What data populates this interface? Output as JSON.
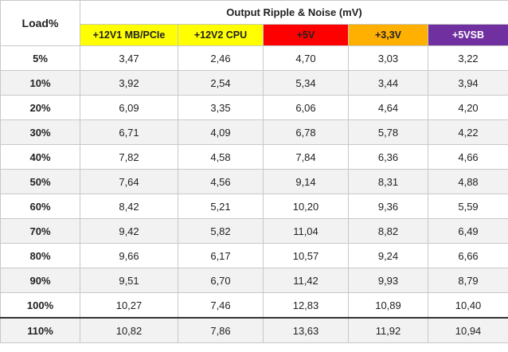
{
  "header": {
    "load": "Load%",
    "group": "Output Ripple & Noise (mV)",
    "columns": [
      "+12V1 MB/PCIe",
      "+12V2 CPU",
      "+5V",
      "+3,3V",
      "+5VSB"
    ]
  },
  "rows": [
    {
      "load": "5%",
      "values": [
        "3,47",
        "2,46",
        "4,70",
        "3,03",
        "3,22"
      ]
    },
    {
      "load": "10%",
      "values": [
        "3,92",
        "2,54",
        "5,34",
        "3,44",
        "3,94"
      ]
    },
    {
      "load": "20%",
      "values": [
        "6,09",
        "3,35",
        "6,06",
        "4,64",
        "4,20"
      ]
    },
    {
      "load": "30%",
      "values": [
        "6,71",
        "4,09",
        "6,78",
        "5,78",
        "4,22"
      ]
    },
    {
      "load": "40%",
      "values": [
        "7,82",
        "4,58",
        "7,84",
        "6,36",
        "4,66"
      ]
    },
    {
      "load": "50%",
      "values": [
        "7,64",
        "4,56",
        "9,14",
        "8,31",
        "4,88"
      ]
    },
    {
      "load": "60%",
      "values": [
        "8,42",
        "5,21",
        "10,20",
        "9,36",
        "5,59"
      ]
    },
    {
      "load": "70%",
      "values": [
        "9,42",
        "5,82",
        "11,04",
        "8,82",
        "6,49"
      ]
    },
    {
      "load": "80%",
      "values": [
        "9,66",
        "6,17",
        "10,57",
        "9,24",
        "6,66"
      ]
    },
    {
      "load": "90%",
      "values": [
        "9,51",
        "6,70",
        "11,42",
        "9,93",
        "8,79"
      ]
    },
    {
      "load": "100%",
      "values": [
        "10,27",
        "7,46",
        "12,83",
        "10,89",
        "10,40"
      ]
    },
    {
      "load": "110%",
      "values": [
        "10,82",
        "7,86",
        "13,63",
        "11,92",
        "10,94"
      ]
    }
  ]
}
